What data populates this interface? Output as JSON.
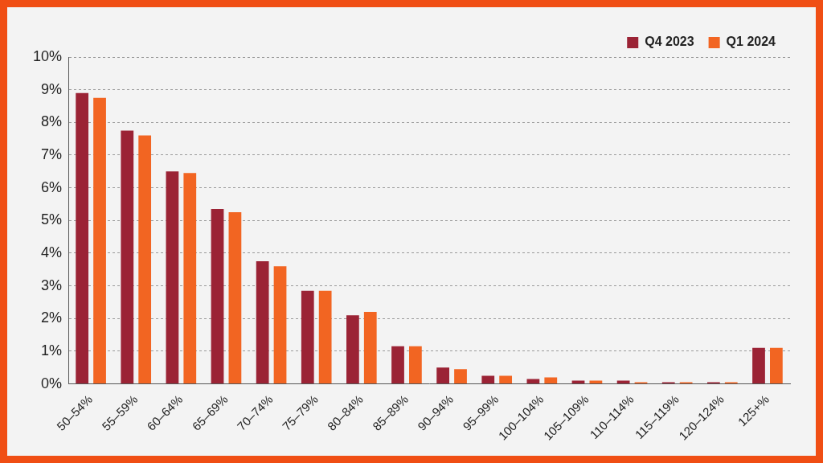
{
  "chart_data": {
    "type": "bar",
    "categories": [
      "50–54%",
      "55–59%",
      "60–64%",
      "65–69%",
      "70–74%",
      "75–79%",
      "80–84%",
      "85–89%",
      "90–94%",
      "95–99%",
      "100–104%",
      "105–109%",
      "110–114%",
      "115–119%",
      "120–124%",
      "125+%"
    ],
    "series": [
      {
        "name": "Q4 2023",
        "color": "#9b2335",
        "values": [
          8.9,
          7.75,
          6.5,
          5.35,
          3.75,
          2.85,
          2.1,
          1.15,
          0.5,
          0.25,
          0.15,
          0.1,
          0.1,
          0.05,
          0.05,
          1.1
        ]
      },
      {
        "name": "Q1 2024",
        "color": "#f26522",
        "values": [
          8.75,
          7.6,
          6.45,
          5.25,
          3.6,
          2.85,
          2.2,
          1.15,
          0.45,
          0.25,
          0.2,
          0.1,
          0.05,
          0.05,
          0.05,
          1.1
        ]
      }
    ],
    "ylim": [
      0,
      10
    ],
    "yticks": [
      {
        "value": 0,
        "label": "0%"
      },
      {
        "value": 1,
        "label": "1%"
      },
      {
        "value": 2,
        "label": "2%"
      },
      {
        "value": 3,
        "label": "3%"
      },
      {
        "value": 4,
        "label": "4%"
      },
      {
        "value": 5,
        "label": "5%"
      },
      {
        "value": 6,
        "label": "6%"
      },
      {
        "value": 7,
        "label": "7%"
      },
      {
        "value": 8,
        "label": "8%"
      },
      {
        "value": 9,
        "label": "9%"
      },
      {
        "value": 10,
        "label": "10%"
      }
    ],
    "grid": true,
    "legend": "upper right"
  }
}
